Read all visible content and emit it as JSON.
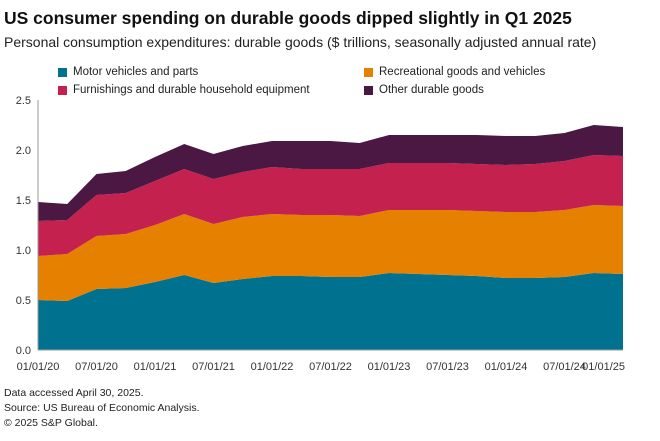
{
  "chart_data": {
    "type": "area",
    "stacked": true,
    "title": "US consumer spending on durable goods dipped slightly in Q1 2025",
    "subtitle": "Personal consumption expenditures: durable goods ($ trillions, seasonally adjusted annual rate)",
    "x": [
      "01/01/20",
      "04/01/20",
      "07/01/20",
      "10/01/20",
      "01/01/21",
      "04/01/21",
      "07/01/21",
      "10/01/21",
      "01/01/22",
      "04/01/22",
      "07/01/22",
      "10/01/22",
      "01/01/23",
      "04/01/23",
      "07/01/23",
      "10/01/23",
      "01/01/24",
      "04/01/24",
      "07/01/24",
      "10/01/24",
      "01/01/25"
    ],
    "x_tick_labels": [
      "01/01/20",
      "07/01/20",
      "01/01/21",
      "07/01/21",
      "01/01/22",
      "07/01/22",
      "01/01/23",
      "07/01/23",
      "01/01/24",
      "07/01/24",
      "01/01/25"
    ],
    "y_ticks": [
      "0.0",
      "0.5",
      "1.0",
      "1.5",
      "2.0",
      "2.5"
    ],
    "ylim": [
      0,
      2.5
    ],
    "legend_position": "top",
    "series": [
      {
        "name": "Motor vehicles and parts",
        "color": "#00728f",
        "values": [
          0.5,
          0.49,
          0.61,
          0.62,
          0.68,
          0.75,
          0.67,
          0.71,
          0.74,
          0.74,
          0.73,
          0.73,
          0.77,
          0.76,
          0.75,
          0.74,
          0.72,
          0.72,
          0.73,
          0.77,
          0.76
        ]
      },
      {
        "name": "Recreational goods and vehicles",
        "color": "#e68000",
        "values": [
          0.44,
          0.47,
          0.53,
          0.54,
          0.57,
          0.61,
          0.59,
          0.62,
          0.62,
          0.61,
          0.62,
          0.61,
          0.63,
          0.64,
          0.65,
          0.65,
          0.66,
          0.66,
          0.67,
          0.68,
          0.68
        ]
      },
      {
        "name": "Furnishings and durable household equipment",
        "color": "#c5214e",
        "values": [
          0.35,
          0.34,
          0.41,
          0.41,
          0.44,
          0.45,
          0.45,
          0.45,
          0.47,
          0.46,
          0.46,
          0.47,
          0.47,
          0.47,
          0.47,
          0.47,
          0.47,
          0.48,
          0.49,
          0.5,
          0.5
        ]
      },
      {
        "name": "Other durable goods",
        "color": "#4a1842",
        "values": [
          0.19,
          0.16,
          0.21,
          0.22,
          0.24,
          0.25,
          0.25,
          0.26,
          0.26,
          0.28,
          0.28,
          0.26,
          0.28,
          0.28,
          0.28,
          0.29,
          0.29,
          0.28,
          0.28,
          0.3,
          0.29
        ]
      }
    ]
  },
  "footnotes": {
    "line1": "Data accessed April 30, 2025.",
    "line2": "Source: US Bureau of Economic Analysis.",
    "line3": "© 2025 S&P Global."
  }
}
